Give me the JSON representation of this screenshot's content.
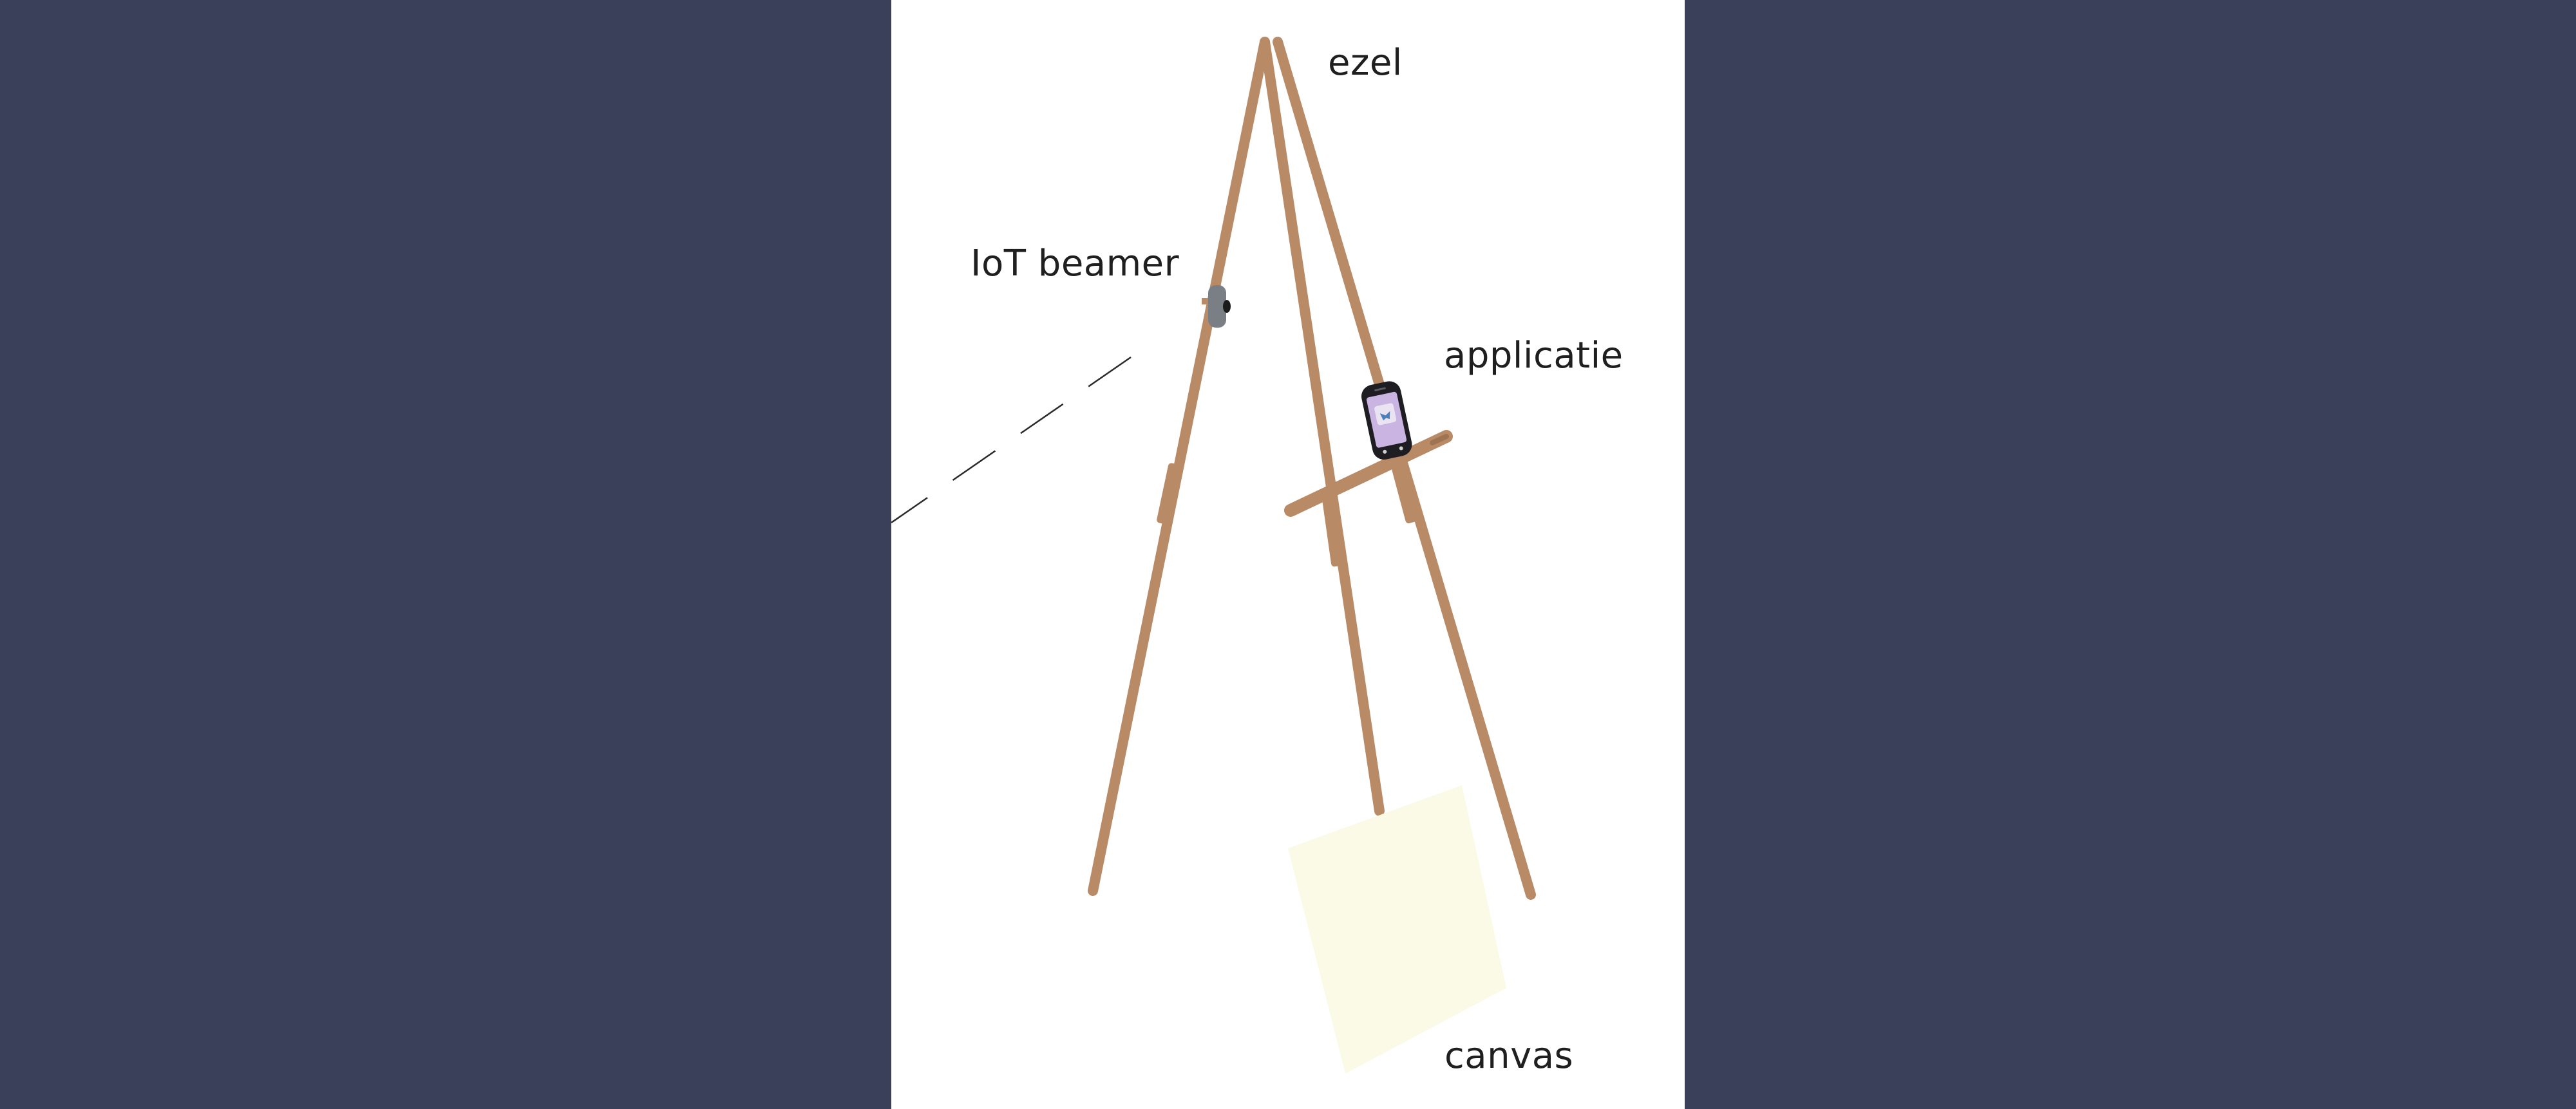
{
  "labels": {
    "easel": "ezel",
    "beamer": "IoT beamer",
    "application": "applicatie",
    "canvas": "canvas"
  },
  "colors": {
    "background": "#3a405a",
    "slide": "#ffffff",
    "wood": "#b98a66",
    "canvas": "#fafae6",
    "text": "#1f1f1f",
    "beamer_body": "#7a7f86",
    "phone_screen": "#c9b4e2"
  },
  "icons": {
    "beamer": "projector-icon",
    "phone": "smartphone-icon"
  }
}
